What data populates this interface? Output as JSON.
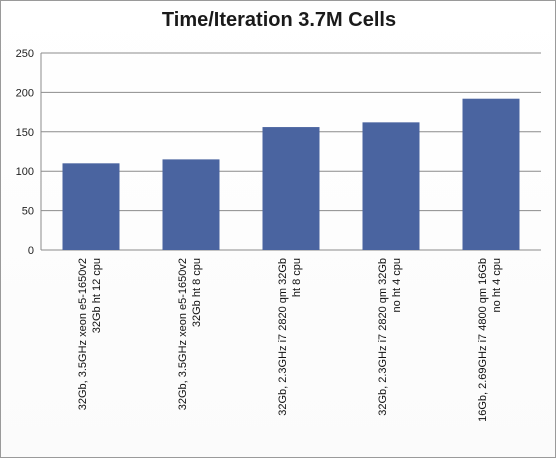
{
  "chart_data": {
    "type": "bar",
    "title": "Time/Iteration 3.7M Cells",
    "xlabel": "",
    "ylabel": "",
    "ylim": [
      0,
      250
    ],
    "yticks": [
      "0",
      "50",
      "100",
      "150",
      "200",
      "250"
    ],
    "grid": true,
    "legend": "none",
    "bar_color": "#4a64a0",
    "categories": [
      [
        "32Gb, 3.5GHz xeon e5-1650v2",
        "32Gb ht 12 cpu"
      ],
      [
        "32Gb, 3.5GHz xeon e5-1650v2",
        "32Gb ht 8 cpu"
      ],
      [
        "32Gb, 2.3GHz i7 2820 qm 32Gb",
        "ht 8 cpu"
      ],
      [
        "32Gb, 2.3GHz i7 2820 qm 32Gb",
        "no ht 4 cpu"
      ],
      [
        "16Gb, 2.69GHz i7 4800 qm 16Gb",
        "no ht 4 cpu"
      ]
    ],
    "values": [
      110,
      115,
      156,
      162,
      192
    ]
  }
}
